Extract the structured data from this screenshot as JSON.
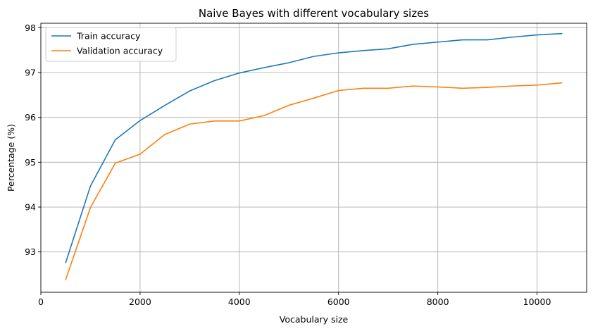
{
  "chart_data": {
    "type": "line",
    "title": "Naive Bayes with different vocabulary sizes",
    "xlabel": "Vocabulary size",
    "ylabel": "Percentage (%)",
    "xlim": [
      0,
      11000
    ],
    "ylim": [
      92.1,
      98.1
    ],
    "xticks": [
      0,
      2000,
      4000,
      6000,
      8000,
      10000
    ],
    "yticks": [
      93,
      94,
      95,
      96,
      97,
      98
    ],
    "grid": true,
    "legend_position": "top-left",
    "series": [
      {
        "name": "Train accuracy",
        "color": "#1f77b4",
        "x": [
          500,
          1000,
          1500,
          2000,
          2500,
          3000,
          3500,
          4000,
          4500,
          5000,
          5500,
          6000,
          6500,
          7000,
          7500,
          8000,
          8500,
          9000,
          9500,
          10000,
          10500
        ],
        "y": [
          92.76,
          94.47,
          95.5,
          95.93,
          96.27,
          96.59,
          96.82,
          96.99,
          97.11,
          97.22,
          97.36,
          97.44,
          97.49,
          97.53,
          97.63,
          97.68,
          97.73,
          97.73,
          97.79,
          97.84,
          97.87
        ]
      },
      {
        "name": "Validation accuracy",
        "color": "#ff7f0e",
        "x": [
          500,
          1000,
          1500,
          2000,
          2500,
          3000,
          3500,
          4000,
          4500,
          5000,
          5500,
          6000,
          6500,
          7000,
          7500,
          8000,
          8500,
          9000,
          9500,
          10000,
          10500
        ],
        "y": [
          92.38,
          93.99,
          94.98,
          95.18,
          95.62,
          95.85,
          95.92,
          95.92,
          96.04,
          96.27,
          96.43,
          96.6,
          96.65,
          96.65,
          96.7,
          96.68,
          96.65,
          96.67,
          96.7,
          96.72,
          96.77
        ]
      }
    ]
  }
}
